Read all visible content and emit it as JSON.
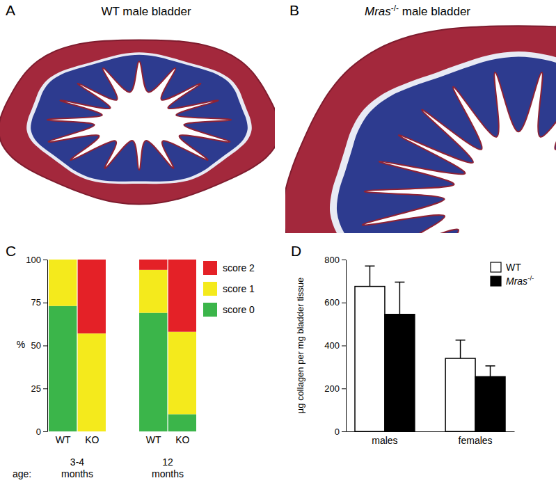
{
  "panels": [
    {
      "label": "A",
      "title": "WT male bladder"
    },
    {
      "label": "B",
      "title": "Mras-/- male bladder"
    }
  ],
  "chart_data": [
    {
      "type": "bar",
      "stacked": true,
      "panel_label": "C",
      "y_label": "%",
      "legend": "right",
      "categories": [
        "WT",
        "KO",
        "WT",
        "KO"
      ],
      "x_title": "age:",
      "x_groups": [
        "3-4 months",
        "12 months"
      ],
      "ylim": [
        0,
        100
      ],
      "yticks": [
        0,
        25,
        50,
        75,
        100
      ],
      "series": [
        {
          "name": "score 0",
          "color": "#3bb54a",
          "values": [
            73,
            0,
            69,
            10
          ]
        },
        {
          "name": "score 1",
          "color": "#f4ea1c",
          "values": [
            27,
            57,
            25,
            48
          ]
        },
        {
          "name": "score 2",
          "color": "#e42127",
          "values": [
            0,
            43,
            6,
            42
          ]
        }
      ]
    },
    {
      "type": "bar",
      "panel_label": "D",
      "y_label": "µg collagen per mg bladder tissue",
      "legend": "upper right",
      "categories": [
        "males",
        "females"
      ],
      "ylim": [
        0,
        800
      ],
      "yticks": [
        0,
        200,
        400,
        600,
        800
      ],
      "series": [
        {
          "name": "WT",
          "color": "#ffffff",
          "values": [
            675,
            340
          ],
          "errors": [
            95,
            85
          ]
        },
        {
          "name": "Mras-/-",
          "color": "#000000",
          "values": [
            545,
            255
          ],
          "errors": [
            150,
            50
          ]
        }
      ]
    }
  ]
}
